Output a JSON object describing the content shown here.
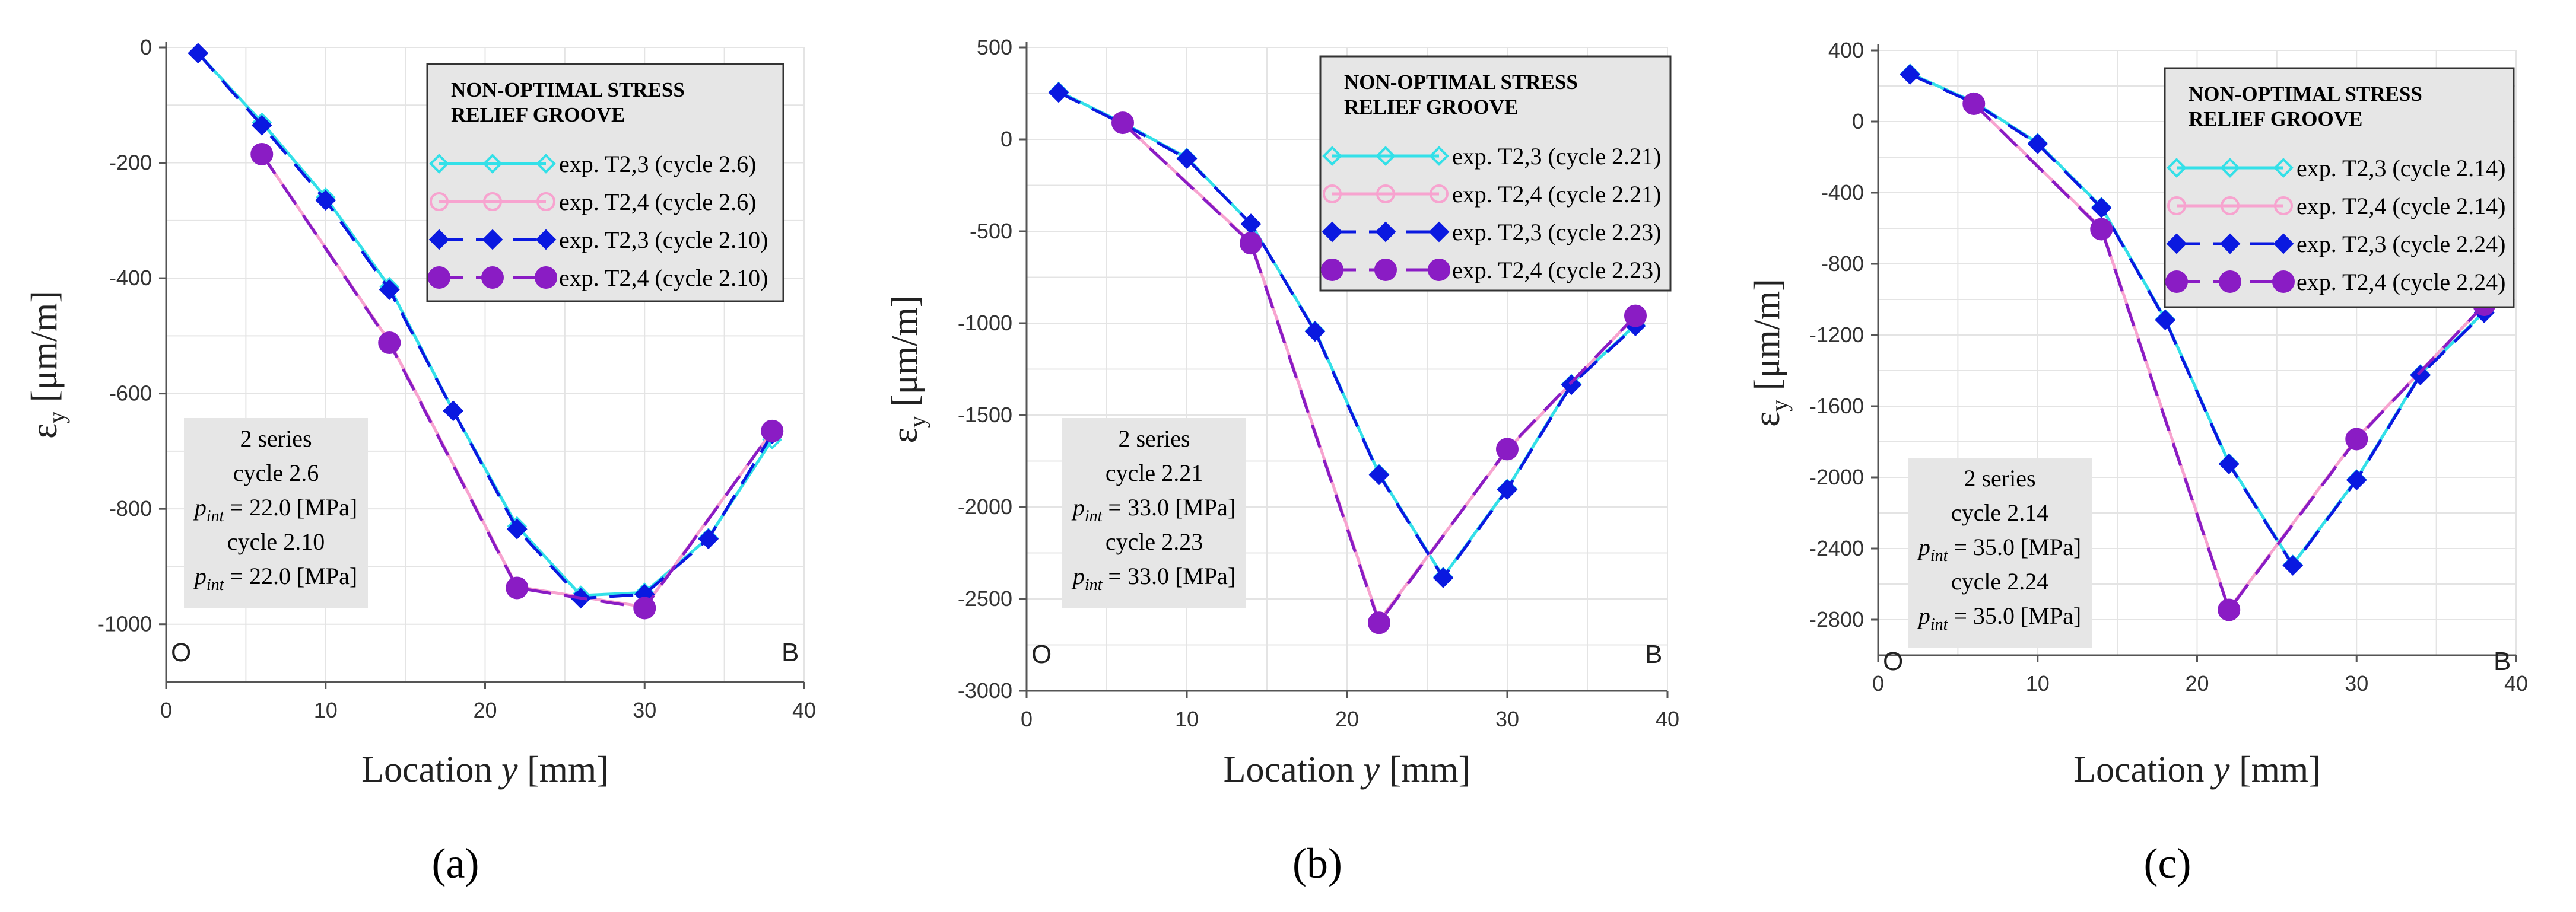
{
  "chart_data": [
    {
      "type": "line",
      "panel_label": "(a)",
      "xlabel": "Location y [mm]",
      "ylabel": "εy [μm/m]",
      "xlim": [
        0,
        40
      ],
      "ylim": [
        -1100,
        0
      ],
      "xticks": [
        0,
        10,
        20,
        30,
        40
      ],
      "yticks": [
        0,
        -200,
        -400,
        -600,
        -800,
        -1000
      ],
      "grid": true,
      "legend": {
        "position": "top-right",
        "title": [
          "NON-OPTIMAL STRESS",
          "RELIEF GROOVE"
        ],
        "entries": [
          "exp. T2,3 (cycle 2.6)",
          "exp. T2,4 (cycle 2.6)",
          "exp. T2,3 (cycle 2.10)",
          "exp. T2,4 (cycle 2.10)"
        ]
      },
      "annotation": [
        "2 series",
        "cycle 2.6",
        "p_int = 22.0 [MPa]",
        "cycle 2.10",
        "p_int = 22.0 [MPa]"
      ],
      "corner_labels": [
        "O",
        "B"
      ],
      "series": [
        {
          "name": "exp. T2,3 (cycle 2.6)",
          "x": [
            2,
            6,
            10,
            14,
            18,
            22,
            26,
            30,
            34,
            38
          ],
          "y": [
            -10,
            -130,
            -260,
            -415,
            -630,
            -830,
            -950,
            -945,
            -850,
            -680
          ]
        },
        {
          "name": "exp. T2,4 (cycle 2.6)",
          "x": [
            6,
            14,
            22,
            30,
            38
          ],
          "y": [
            -185,
            -510,
            -935,
            -970,
            -665
          ]
        },
        {
          "name": "exp. T2,3 (cycle 2.10)",
          "x": [
            2,
            6,
            10,
            14,
            18,
            22,
            26,
            30,
            34,
            38
          ],
          "y": [
            -10,
            -135,
            -265,
            -420,
            -630,
            -835,
            -955,
            -948,
            -852,
            -670
          ]
        },
        {
          "name": "exp. T2,4 (cycle 2.10)",
          "x": [
            6,
            14,
            22,
            30,
            38
          ],
          "y": [
            -185,
            -512,
            -937,
            -972,
            -665
          ]
        }
      ]
    },
    {
      "type": "line",
      "panel_label": "(b)",
      "xlabel": "Location y [mm]",
      "ylabel": "εy [μm/m]",
      "xlim": [
        0,
        40
      ],
      "ylim": [
        -3000,
        500
      ],
      "xticks": [
        0,
        10,
        20,
        30,
        40
      ],
      "yticks": [
        500,
        0,
        -500,
        -1000,
        -1500,
        -2000,
        -2500,
        -3000
      ],
      "grid": true,
      "legend": {
        "position": "top-right",
        "title": [
          "NON-OPTIMAL STRESS",
          "RELIEF GROOVE"
        ],
        "entries": [
          "exp. T2,3 (cycle 2.21)",
          "exp. T2,4 (cycle 2.21)",
          "exp. T2,3 (cycle 2.23)",
          "exp. T2,4 (cycle 2.23)"
        ]
      },
      "annotation": [
        "2 series",
        "cycle 2.21",
        "p_int = 33.0 [MPa]",
        "cycle 2.23",
        "p_int = 33.0 [MPa]"
      ],
      "corner_labels": [
        "O",
        "B"
      ],
      "series": [
        {
          "name": "exp. T2,3 (cycle 2.21)",
          "x": [
            2,
            6,
            10,
            14,
            18,
            22,
            26,
            30,
            34,
            38
          ],
          "y": [
            260,
            90,
            -100,
            -460,
            -1040,
            -1820,
            -2380,
            -1900,
            -1330,
            -1010
          ]
        },
        {
          "name": "exp. T2,4 (cycle 2.21)",
          "x": [
            6,
            14,
            22,
            30,
            38
          ],
          "y": [
            90,
            -560,
            -2620,
            -1690,
            -960
          ]
        },
        {
          "name": "exp. T2,3 (cycle 2.23)",
          "x": [
            2,
            6,
            10,
            14,
            18,
            22,
            26,
            30,
            34,
            38
          ],
          "y": [
            255,
            85,
            -105,
            -460,
            -1045,
            -1825,
            -2385,
            -1905,
            -1335,
            -1015
          ]
        },
        {
          "name": "exp. T2,4 (cycle 2.23)",
          "x": [
            6,
            14,
            22,
            30,
            38
          ],
          "y": [
            90,
            -565,
            -2630,
            -1685,
            -960
          ]
        }
      ]
    },
    {
      "type": "line",
      "panel_label": "(c)",
      "xlabel": "Location y [mm]",
      "ylabel": "εy [μm/m]",
      "xlim": [
        0,
        40
      ],
      "ylim": [
        -3000,
        400
      ],
      "xticks": [
        0,
        10,
        20,
        30,
        40
      ],
      "yticks": [
        400,
        0,
        -400,
        -800,
        -1200,
        -1600,
        -2000,
        -2400,
        -2800
      ],
      "grid": true,
      "legend": {
        "position": "top-right",
        "title": [
          "NON-OPTIMAL STRESS",
          "RELIEF GROOVE"
        ],
        "entries": [
          "exp. T2,3 (cycle 2.14)",
          "exp. T2,4 (cycle 2.14)",
          "exp. T2,3 (cycle 2.24)",
          "exp. T2,4 (cycle 2.24)"
        ]
      },
      "annotation": [
        "2 series",
        "cycle 2.14",
        "p_int = 35.0 [MPa]",
        "cycle 2.24",
        "p_int = 35.0 [MPa]"
      ],
      "corner_labels": [
        "O",
        "B"
      ],
      "series": [
        {
          "name": "exp. T2,3 (cycle 2.14)",
          "x": [
            2,
            6,
            10,
            14,
            18,
            22,
            26,
            30,
            34,
            38
          ],
          "y": [
            270,
            110,
            -120,
            -480,
            -1110,
            -1920,
            -2490,
            -2010,
            -1420,
            -1070
          ]
        },
        {
          "name": "exp. T2,4 (cycle 2.14)",
          "x": [
            6,
            14,
            22,
            30,
            38
          ],
          "y": [
            100,
            -600,
            -2740,
            -1780,
            -1030
          ]
        },
        {
          "name": "exp. T2,3 (cycle 2.24)",
          "x": [
            2,
            6,
            10,
            14,
            18,
            22,
            26,
            30,
            34,
            38
          ],
          "y": [
            265,
            105,
            -125,
            -485,
            -1115,
            -1925,
            -2495,
            -2015,
            -1425,
            -1075
          ]
        },
        {
          "name": "exp. T2,4 (cycle 2.24)",
          "x": [
            6,
            14,
            22,
            30,
            38
          ],
          "y": [
            100,
            -605,
            -2745,
            -1785,
            -1030
          ]
        }
      ]
    }
  ],
  "styles": {
    "series_colors": [
      "#33e0e8",
      "#f7a3cf",
      "#0a19e0",
      "#8a1cc4"
    ],
    "grid_color": "#e4e4e4",
    "axis_color": "#555555",
    "legend_bg": "#e6e6e6",
    "annotation_bg": "#e6e6e6"
  }
}
